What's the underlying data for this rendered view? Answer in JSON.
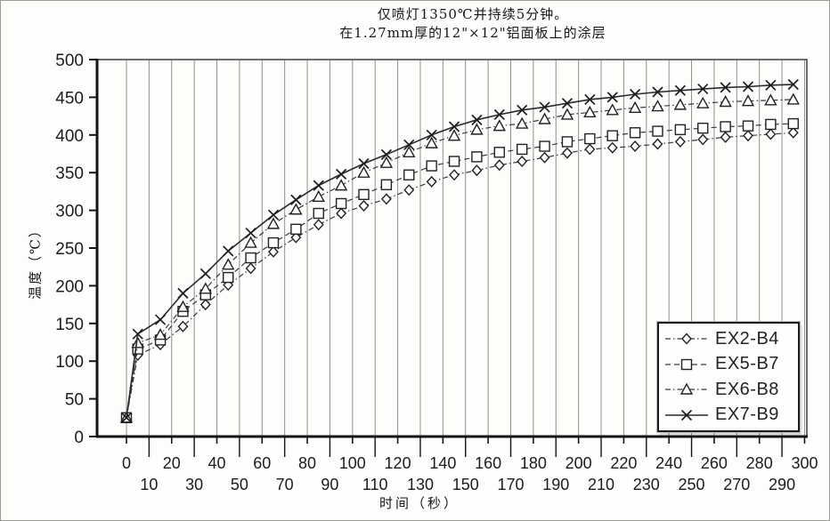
{
  "figure": {
    "title_line1": "仅喷灯1350℃并持续5分钟。",
    "title_line2": "在1.27mm厚的12\"×12\"铝面板上的涂层",
    "xlabel": "时间（秒）",
    "ylabel": "温度（℃）"
  },
  "chart_data": {
    "type": "line",
    "title": "仅喷灯1350℃并持续5分钟。在1.27mm厚的12\"×12\"铝面板上的涂层",
    "xlabel": "时间（秒）",
    "ylabel": "温度（℃）",
    "xlim": [
      -13,
      301
    ],
    "ylim": [
      0,
      500
    ],
    "grid": "vertical-only",
    "legend_position": "bottom-right",
    "x_ticks_major": [
      0,
      20,
      40,
      60,
      80,
      100,
      120,
      140,
      160,
      180,
      200,
      220,
      240,
      260,
      280,
      300
    ],
    "x_ticks_minor": [
      10,
      30,
      50,
      70,
      90,
      110,
      130,
      150,
      170,
      190,
      210,
      230,
      250,
      270,
      290
    ],
    "y_ticks": [
      0,
      50,
      100,
      150,
      200,
      250,
      300,
      350,
      400,
      450,
      500
    ],
    "x": [
      0,
      5,
      15,
      25,
      35,
      45,
      55,
      65,
      75,
      85,
      95,
      105,
      115,
      125,
      135,
      145,
      155,
      165,
      175,
      185,
      195,
      205,
      215,
      225,
      235,
      245,
      255,
      265,
      275,
      285,
      295
    ],
    "series": [
      {
        "name": "EX2-B4",
        "marker": "diamond",
        "line": "dashdot",
        "color": "#3a3a3a",
        "values": [
          25,
          108,
          122,
          146,
          175,
          201,
          223,
          245,
          264,
          281,
          296,
          306,
          315,
          327,
          338,
          347,
          353,
          360,
          365,
          370,
          376,
          381,
          383,
          385,
          388,
          391,
          394,
          397,
          399,
          401,
          403
        ]
      },
      {
        "name": "EX5-B7",
        "marker": "square",
        "line": "dashed",
        "color": "#3a3a3a",
        "values": [
          25,
          116,
          128,
          166,
          188,
          211,
          237,
          257,
          275,
          296,
          309,
          321,
          334,
          347,
          359,
          365,
          371,
          377,
          381,
          385,
          391,
          395,
          399,
          403,
          405,
          407,
          409,
          411,
          412,
          414,
          415
        ]
      },
      {
        "name": "EX6-B8",
        "marker": "triangle",
        "line": "dashdot",
        "color": "#3a3a3a",
        "values": [
          25,
          124,
          135,
          172,
          196,
          228,
          257,
          282,
          301,
          318,
          333,
          350,
          363,
          377,
          389,
          399,
          407,
          412,
          415,
          421,
          427,
          430,
          433,
          436,
          438,
          440,
          442,
          444,
          445,
          446,
          447
        ]
      },
      {
        "name": "EX7-B9",
        "marker": "x",
        "line": "solid",
        "color": "#2a2a2a",
        "values": [
          25,
          136,
          155,
          190,
          216,
          246,
          270,
          294,
          314,
          333,
          348,
          362,
          374,
          387,
          400,
          411,
          420,
          427,
          433,
          437,
          442,
          447,
          450,
          454,
          457,
          459,
          461,
          463,
          464,
          466,
          467
        ]
      }
    ]
  }
}
